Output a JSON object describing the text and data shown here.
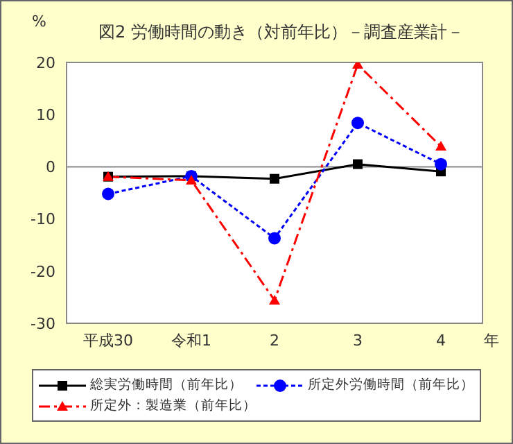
{
  "chart_data": {
    "type": "line",
    "title": "図2  労働時間の動き（対前年比）－調査産業計－",
    "ylabel": "%",
    "xlabel": "年",
    "categories": [
      "平成30",
      "令和1",
      "2",
      "3",
      "4"
    ],
    "series": [
      {
        "name": "総実労働時間（前年比）",
        "color": "#000000",
        "marker": "square",
        "line_style": "solid",
        "values": [
          -1.9,
          -1.8,
          -2.3,
          0.5,
          -0.9
        ]
      },
      {
        "name": "所定外労働時間（前年比）",
        "color": "#0000ff",
        "marker": "circle",
        "line_style": "dotted",
        "values": [
          -5.2,
          -1.8,
          -13.7,
          8.4,
          0.5
        ]
      },
      {
        "name": "所定外：製造業（前年比）",
        "color": "#ff0000",
        "marker": "triangle",
        "line_style": "dashed",
        "values": [
          -1.9,
          -2.6,
          -25.6,
          19.6,
          3.9
        ]
      }
    ],
    "ylim": [
      -30,
      20
    ],
    "yticks": [
      -30,
      -20,
      -10,
      0,
      10,
      20
    ],
    "ref_lines": [
      {
        "axis": "y",
        "value": 0,
        "color": "#888888"
      }
    ],
    "legend": "bottom"
  }
}
